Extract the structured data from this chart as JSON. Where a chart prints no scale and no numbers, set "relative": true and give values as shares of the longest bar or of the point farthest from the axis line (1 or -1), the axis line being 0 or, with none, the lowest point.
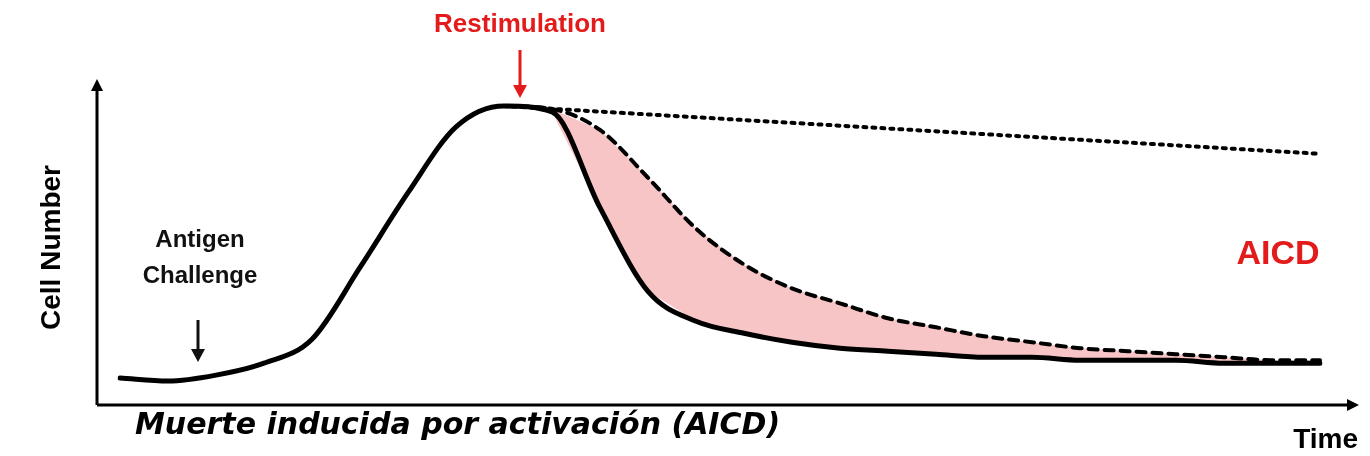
{
  "chart_data": {
    "type": "line",
    "relative": true,
    "xlabel": "Time",
    "ylabel": "Cell Number",
    "categories": [
      null,
      null,
      null,
      null,
      null,
      null,
      null,
      null,
      null,
      null,
      null,
      null,
      null,
      null,
      null,
      null,
      null,
      null,
      null,
      null,
      null,
      null,
      null,
      null,
      null,
      null
    ],
    "series": [
      {
        "color": "#000000",
        "line_style": "solid",
        "values": [
          0.09,
          0.08,
          0.1,
          0.14,
          0.22,
          0.46,
          0.71,
          0.93,
          1.0,
          0.98,
          0.66,
          0.38,
          0.28,
          0.24,
          0.21,
          0.19,
          0.18,
          0.17,
          0.16,
          0.16,
          0.15,
          0.15,
          0.15,
          0.14,
          0.14,
          0.14
        ]
      },
      {
        "color": "#000000",
        "line_style": "dashed",
        "values": [
          null,
          null,
          null,
          null,
          null,
          null,
          null,
          null,
          1.0,
          0.99,
          0.92,
          0.76,
          0.59,
          0.47,
          0.39,
          0.34,
          0.29,
          0.26,
          0.23,
          0.21,
          0.19,
          0.18,
          0.17,
          0.16,
          0.15,
          0.15
        ],
        "lower": [
          null,
          null,
          null,
          null,
          null,
          null,
          null,
          null,
          1.0,
          0.98,
          0.66,
          0.38,
          0.28,
          0.24,
          0.21,
          0.19,
          0.18,
          0.17,
          0.16,
          0.16,
          0.15,
          0.15,
          0.15,
          0.14,
          0.14,
          0.14
        ],
        "upper": [
          null,
          null,
          null,
          null,
          null,
          null,
          null,
          null,
          1.0,
          0.99,
          0.92,
          0.76,
          0.59,
          0.47,
          0.39,
          0.34,
          0.29,
          0.26,
          0.23,
          0.21,
          0.19,
          0.18,
          0.17,
          0.16,
          0.15,
          0.15
        ]
      },
      {
        "color": "#000000",
        "line_style": "dotted",
        "values": [
          null,
          null,
          null,
          null,
          null,
          null,
          null,
          null,
          1.0,
          null,
          null,
          null,
          null,
          null,
          null,
          null,
          null,
          null,
          null,
          null,
          null,
          null,
          null,
          null,
          null,
          0.84
        ]
      }
    ],
    "annotations": [
      "Restimulation",
      "Antigen Challenge",
      "AICD",
      "Muerte inducida por activación (AICD)"
    ],
    "legend": false
  }
}
